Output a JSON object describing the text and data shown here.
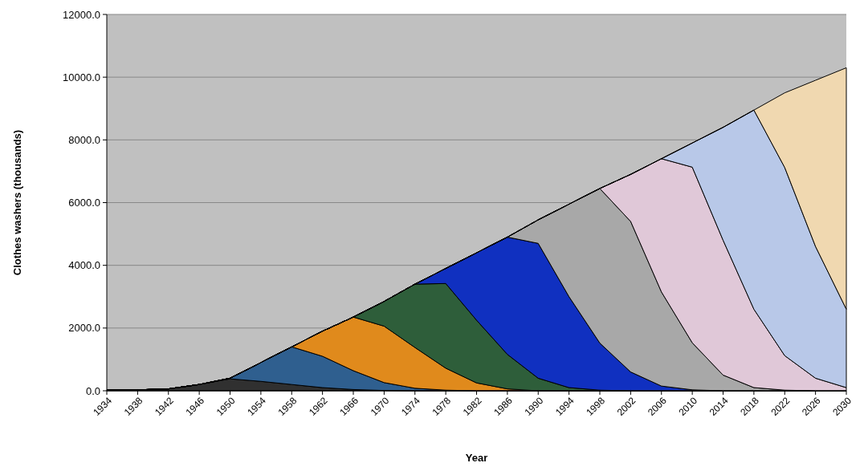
{
  "chart_data": {
    "type": "area",
    "stacked": true,
    "xlabel": "Year",
    "ylabel": "Clothes washers (thousands)",
    "x": [
      1934,
      1938,
      1942,
      1946,
      1950,
      1954,
      1958,
      1962,
      1966,
      1970,
      1974,
      1978,
      1982,
      1986,
      1990,
      1994,
      1998,
      2002,
      2006,
      2010,
      2014,
      2018,
      2022,
      2026,
      2030
    ],
    "xlim": [
      1934,
      2030
    ],
    "xticks": [
      1934,
      1938,
      1942,
      1946,
      1950,
      1954,
      1958,
      1962,
      1966,
      1970,
      1974,
      1978,
      1982,
      1986,
      1990,
      1994,
      1998,
      2002,
      2006,
      2010,
      2014,
      2018,
      2022,
      2026,
      2030
    ],
    "ylim": [
      0,
      12000
    ],
    "yticks": [
      {
        "value": 0,
        "label": "0.0"
      },
      {
        "value": 2000,
        "label": "2000.0"
      },
      {
        "value": 4000,
        "label": "4000.0"
      },
      {
        "value": 6000,
        "label": "6000.0"
      },
      {
        "value": 8000,
        "label": "8000.0"
      },
      {
        "value": 10000,
        "label": "10000.0"
      },
      {
        "value": 12000,
        "label": "12000.0"
      }
    ],
    "grid": "y",
    "series": [
      {
        "color": "#303030",
        "values": [
          20,
          30,
          60,
          200,
          380,
          300,
          200,
          100,
          40,
          10,
          0,
          0,
          0,
          0,
          0,
          0,
          0,
          0,
          0,
          0,
          0,
          0,
          0,
          0,
          0
        ]
      },
      {
        "color": "#2f5f8f",
        "values": [
          0,
          0,
          0,
          0,
          20,
          600,
          1200,
          1000,
          600,
          250,
          80,
          20,
          0,
          0,
          0,
          0,
          0,
          0,
          0,
          0,
          0,
          0,
          0,
          0,
          0
        ]
      },
      {
        "color": "#e08a1c",
        "values": [
          0,
          0,
          0,
          0,
          0,
          0,
          0,
          800,
          1710,
          1800,
          1300,
          700,
          250,
          60,
          0,
          0,
          0,
          0,
          0,
          0,
          0,
          0,
          0,
          0,
          0
        ]
      },
      {
        "color": "#2e5e3a",
        "values": [
          0,
          0,
          0,
          0,
          0,
          0,
          0,
          0,
          0,
          790,
          2020,
          2700,
          2000,
          1100,
          400,
          100,
          20,
          0,
          0,
          0,
          0,
          0,
          0,
          0,
          0
        ]
      },
      {
        "color": "#1030c0",
        "values": [
          0,
          0,
          0,
          0,
          0,
          0,
          0,
          0,
          0,
          0,
          0,
          480,
          2150,
          3740,
          4300,
          2900,
          1500,
          600,
          150,
          30,
          0,
          0,
          0,
          0,
          0
        ]
      },
      {
        "color": "#a8a8a8",
        "values": [
          0,
          0,
          0,
          0,
          0,
          0,
          0,
          0,
          0,
          0,
          0,
          0,
          0,
          0,
          750,
          2950,
          4930,
          4800,
          3000,
          1500,
          500,
          100,
          20,
          0,
          0
        ]
      },
      {
        "color": "#e0c8d8",
        "values": [
          0,
          0,
          0,
          0,
          0,
          0,
          0,
          0,
          0,
          0,
          0,
          0,
          0,
          0,
          0,
          0,
          0,
          1500,
          4250,
          5600,
          4300,
          2500,
          1100,
          400,
          100
        ]
      },
      {
        "color": "#b8c8e8",
        "values": [
          0,
          0,
          0,
          0,
          0,
          0,
          0,
          0,
          0,
          0,
          0,
          0,
          0,
          0,
          0,
          0,
          0,
          0,
          0,
          770,
          3600,
          6350,
          6000,
          4200,
          2500
        ]
      },
      {
        "color": "#f0d8b0",
        "values": [
          0,
          0,
          0,
          0,
          0,
          0,
          0,
          0,
          0,
          0,
          0,
          0,
          0,
          0,
          0,
          0,
          0,
          0,
          0,
          0,
          0,
          0,
          2380,
          5300,
          7700
        ]
      }
    ]
  }
}
